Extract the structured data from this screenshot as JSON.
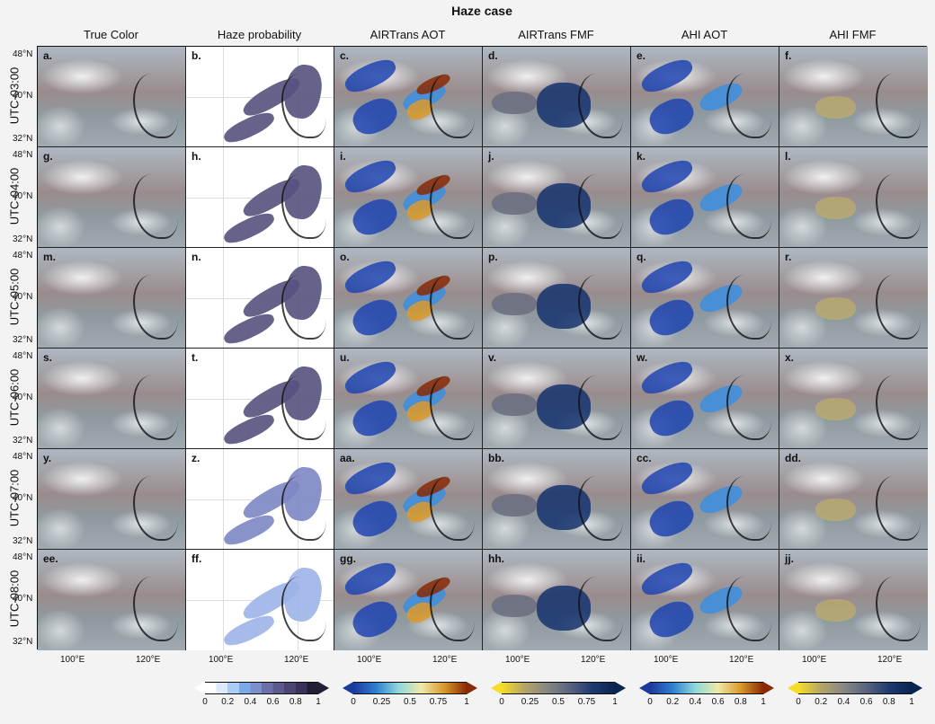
{
  "chart_data": {
    "type": "heatmap",
    "title": "Haze case",
    "columns": [
      "True Color",
      "Haze probability",
      "AIRTrans AOT",
      "AIRTrans FMF",
      "AHI AOT",
      "AHI FMF"
    ],
    "rows": [
      "UTC-03:00",
      "UTC-04:00",
      "UTC-05:00",
      "UTC-06:00",
      "UTC-07:00",
      "UTC-08:00"
    ],
    "panel_labels": [
      [
        "a.",
        "b.",
        "c.",
        "d.",
        "e.",
        "f."
      ],
      [
        "g.",
        "h.",
        "i.",
        "j.",
        "k.",
        "l."
      ],
      [
        "m.",
        "n.",
        "o.",
        "p.",
        "q.",
        "r."
      ],
      [
        "s.",
        "t.",
        "u.",
        "v.",
        "w.",
        "x."
      ],
      [
        "y.",
        "z.",
        "aa.",
        "bb.",
        "cc.",
        "dd."
      ],
      [
        "ee.",
        "ff.",
        "gg.",
        "hh.",
        "ii.",
        "jj."
      ]
    ],
    "y_ticks": [
      "48°N",
      "40°N",
      "32°N"
    ],
    "x_ticks": [
      "100°E",
      "120°E"
    ],
    "colorbars": [
      {
        "name": "Haze probability",
        "ticks": [
          "0",
          "0.2",
          "0.4",
          "0.6",
          "0.8",
          "1"
        ],
        "colors": [
          "#ffffff",
          "#dceafb",
          "#a9cdf5",
          "#7aa9e6",
          "#7b8fcb",
          "#6c70a8",
          "#5a5a8e",
          "#4a4573",
          "#3a3258",
          "#241d36"
        ]
      },
      {
        "name": "AIRTrans AOT",
        "ticks": [
          "0",
          "0.25",
          "0.5",
          "0.75",
          "1"
        ],
        "colors": [
          "#1a3a9c",
          "#2f7fd0",
          "#8fd8dc",
          "#eee9a8",
          "#d99a2a",
          "#8a2a05"
        ]
      },
      {
        "name": "AIRTrans FMF",
        "ticks": [
          "0",
          "0.25",
          "0.5",
          "0.75",
          "1"
        ],
        "colors": [
          "#f7dd2a",
          "#b4a466",
          "#878783",
          "#5a6480",
          "#1f3a6e",
          "#0a2450"
        ]
      },
      {
        "name": "AHI AOT",
        "ticks": [
          "0",
          "0.2",
          "0.4",
          "0.6",
          "0.8",
          "1"
        ],
        "colors": [
          "#1a3a9c",
          "#2f7fd0",
          "#8fd8dc",
          "#eee9a8",
          "#d99a2a",
          "#8a2a05"
        ]
      },
      {
        "name": "AHI FMF",
        "ticks": [
          "0",
          "0.2",
          "0.4",
          "0.6",
          "0.8",
          "1"
        ],
        "colors": [
          "#f7dd2a",
          "#b4a466",
          "#878783",
          "#5a6480",
          "#1f3a6e",
          "#0a2450"
        ]
      }
    ],
    "xlabel": "",
    "ylabel": ""
  }
}
